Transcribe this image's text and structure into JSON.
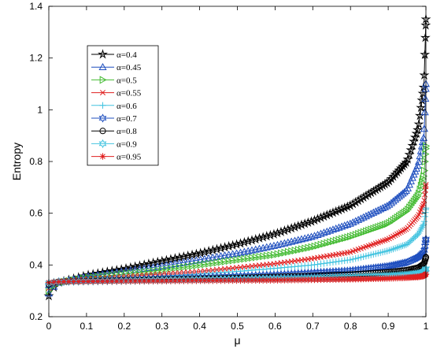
{
  "chart_data": {
    "type": "line",
    "xlabel": "μ",
    "ylabel": "Entropy",
    "xlim": [
      0,
      1
    ],
    "ylim": [
      0.2,
      1.4
    ],
    "xticks": [
      "0",
      "0.1",
      "0.2",
      "0.3",
      "0.4",
      "0.5",
      "0.6",
      "0.7",
      "0.8",
      "0.9",
      "1"
    ],
    "yticks": [
      "0.2",
      "0.4",
      "0.6",
      "0.8",
      "1",
      "1.2",
      "1.4"
    ],
    "grid": false,
    "legend_position": "top-left",
    "series": [
      {
        "name": "α=0.4",
        "color": "#000000",
        "marker": "star",
        "x": [
          0,
          0.02,
          0.1,
          0.2,
          0.3,
          0.4,
          0.5,
          0.6,
          0.7,
          0.8,
          0.9,
          0.95,
          0.98,
          0.995,
          1
        ],
        "y": [
          0.28,
          0.33,
          0.36,
          0.385,
          0.415,
          0.445,
          0.48,
          0.52,
          0.57,
          0.63,
          0.72,
          0.8,
          0.93,
          1.1,
          1.35
        ]
      },
      {
        "name": "α=0.45",
        "color": "#1f4fbf",
        "marker": "triangle-up",
        "x": [
          0,
          0.02,
          0.1,
          0.2,
          0.3,
          0.4,
          0.5,
          0.6,
          0.7,
          0.8,
          0.9,
          0.95,
          0.98,
          0.995,
          1
        ],
        "y": [
          0.29,
          0.33,
          0.355,
          0.375,
          0.395,
          0.42,
          0.445,
          0.475,
          0.51,
          0.56,
          0.63,
          0.69,
          0.79,
          0.9,
          1.1
        ]
      },
      {
        "name": "α=0.5",
        "color": "#44bb33",
        "marker": "triangle-right",
        "x": [
          0,
          0.02,
          0.1,
          0.2,
          0.3,
          0.4,
          0.5,
          0.6,
          0.7,
          0.8,
          0.9,
          0.95,
          0.98,
          0.995,
          1
        ],
        "y": [
          0.3,
          0.33,
          0.35,
          0.365,
          0.38,
          0.4,
          0.42,
          0.44,
          0.47,
          0.51,
          0.56,
          0.61,
          0.67,
          0.75,
          0.86
        ]
      },
      {
        "name": "α=0.55",
        "color": "#e02020",
        "marker": "x",
        "x": [
          0,
          0.02,
          0.1,
          0.2,
          0.3,
          0.4,
          0.5,
          0.6,
          0.7,
          0.8,
          0.9,
          0.95,
          0.98,
          0.995,
          1
        ],
        "y": [
          0.31,
          0.335,
          0.345,
          0.355,
          0.365,
          0.375,
          0.39,
          0.405,
          0.425,
          0.45,
          0.5,
          0.54,
          0.59,
          0.64,
          0.71
        ]
      },
      {
        "name": "α=0.6",
        "color": "#44c4e0",
        "marker": "plus",
        "x": [
          0,
          0.02,
          0.1,
          0.2,
          0.3,
          0.4,
          0.5,
          0.6,
          0.7,
          0.8,
          0.9,
          0.95,
          0.98,
          0.995,
          1
        ],
        "y": [
          0.315,
          0.335,
          0.343,
          0.35,
          0.357,
          0.365,
          0.375,
          0.387,
          0.4,
          0.42,
          0.455,
          0.48,
          0.52,
          0.56,
          0.62
        ]
      },
      {
        "name": "α=0.7",
        "color": "#1f4fbf",
        "marker": "hexagram",
        "x": [
          0,
          0.02,
          0.1,
          0.2,
          0.3,
          0.4,
          0.5,
          0.6,
          0.7,
          0.8,
          0.9,
          0.95,
          0.98,
          0.995,
          1
        ],
        "y": [
          0.32,
          0.335,
          0.34,
          0.344,
          0.348,
          0.352,
          0.357,
          0.362,
          0.37,
          0.378,
          0.395,
          0.41,
          0.43,
          0.45,
          0.5
        ]
      },
      {
        "name": "α=0.8",
        "color": "#000000",
        "marker": "circle",
        "x": [
          0,
          0.02,
          0.1,
          0.2,
          0.3,
          0.4,
          0.5,
          0.6,
          0.7,
          0.8,
          0.9,
          0.95,
          0.98,
          0.995,
          1
        ],
        "y": [
          0.325,
          0.335,
          0.338,
          0.341,
          0.344,
          0.347,
          0.35,
          0.354,
          0.358,
          0.363,
          0.372,
          0.38,
          0.39,
          0.405,
          0.43
        ]
      },
      {
        "name": "α=0.9",
        "color": "#44c4e0",
        "marker": "hexagram",
        "x": [
          0,
          0.02,
          0.1,
          0.2,
          0.3,
          0.4,
          0.5,
          0.6,
          0.7,
          0.8,
          0.9,
          0.95,
          0.98,
          0.995,
          1
        ],
        "y": [
          0.33,
          0.335,
          0.337,
          0.339,
          0.341,
          0.343,
          0.345,
          0.347,
          0.349,
          0.352,
          0.357,
          0.361,
          0.366,
          0.372,
          0.385
        ]
      },
      {
        "name": "α=0.95",
        "color": "#e02020",
        "marker": "asterisk",
        "x": [
          0,
          0.02,
          0.1,
          0.2,
          0.3,
          0.4,
          0.5,
          0.6,
          0.7,
          0.8,
          0.9,
          0.95,
          0.98,
          0.995,
          1
        ],
        "y": [
          0.332,
          0.335,
          0.336,
          0.337,
          0.338,
          0.339,
          0.34,
          0.341,
          0.343,
          0.345,
          0.348,
          0.351,
          0.354,
          0.358,
          0.365
        ]
      }
    ]
  }
}
